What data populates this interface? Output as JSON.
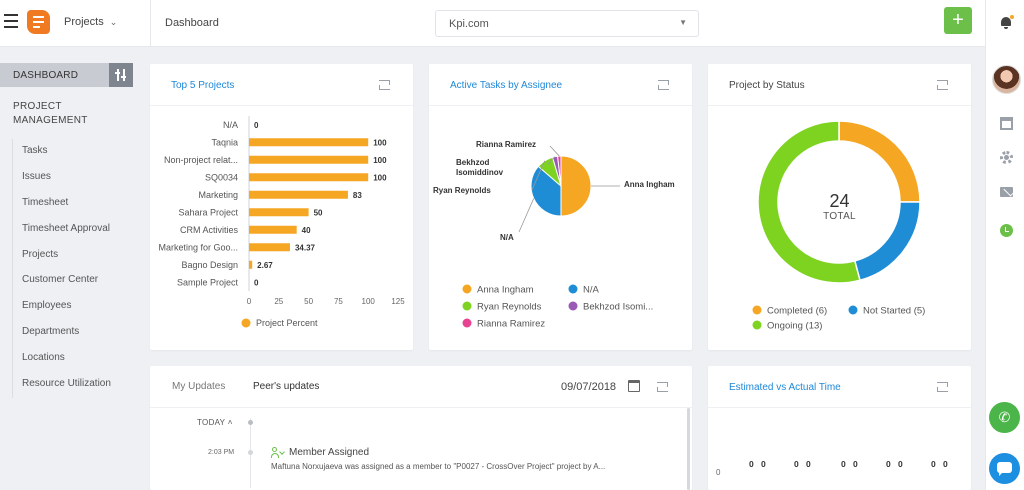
{
  "header": {
    "project_selector": "Projects",
    "breadcrumb": "Dashboard",
    "site_select": "Kpi.com",
    "add_label": "+"
  },
  "sidebar": {
    "dashboard_label": "DASHBOARD",
    "section_title": "PROJECT MANAGEMENT",
    "items": [
      {
        "label": "Tasks"
      },
      {
        "label": "Issues"
      },
      {
        "label": "Timesheet"
      },
      {
        "label": "Timesheet Approval"
      },
      {
        "label": "Projects"
      },
      {
        "label": "Customer Center"
      },
      {
        "label": "Employees"
      },
      {
        "label": "Departments"
      },
      {
        "label": "Locations"
      },
      {
        "label": "Resource Utilization"
      }
    ]
  },
  "cards": {
    "top5": {
      "title": "Top 5 Projects"
    },
    "tasks": {
      "title": "Active Tasks by Assignee"
    },
    "status": {
      "title": "Project by Status",
      "total_value": "24",
      "total_label": "TOTAL"
    },
    "updates": {
      "tab_mine": "My Updates",
      "tab_peers": "Peer's updates",
      "date": "09/07/2018"
    },
    "estimated": {
      "title": "Estimated vs Actual Time"
    }
  },
  "timeline": {
    "group_label": "TODAY",
    "event": {
      "time": "2:03 PM",
      "title": "Member Assigned",
      "description": "Maftuna Norxujaeva was assigned as a member to \"P0027 - CrossOver Project\" project by A..."
    }
  },
  "colors": {
    "accent": "#1e88d8",
    "orange": "#f5a623",
    "blue": "#1f8dd6",
    "green": "#7ed321",
    "purple": "#9b59b6",
    "pink": "#e84393",
    "add_green": "#6cc04a"
  },
  "chart_data": [
    {
      "type": "bar",
      "orientation": "horizontal",
      "categories": [
        "N/A",
        "Taqnia",
        "Non-project relat...",
        "SQ0034",
        "Marketing",
        "Sahara Project",
        "CRM Activities",
        "Marketing for Goo...",
        "Bagno Design",
        "Sample Project"
      ],
      "series": [
        {
          "name": "Project Percent",
          "values": [
            0,
            100,
            100,
            100,
            83,
            50,
            40,
            34.37,
            2.67,
            0
          ],
          "color": "#f5a623"
        }
      ],
      "data_labels": [
        "0",
        "100",
        "100",
        "100",
        "83",
        "50",
        "40",
        "34.37",
        "2.67",
        "0"
      ],
      "xlim": [
        0,
        125
      ],
      "xticks": [
        "0",
        "25",
        "50",
        "75",
        "100",
        "125"
      ],
      "legend": "bottom",
      "grid": false
    },
    {
      "type": "pie",
      "slices": [
        {
          "label": "Anna Ingham",
          "value": 11,
          "color": "#f5a623"
        },
        {
          "label": "N/A",
          "value": 8,
          "color": "#1f8dd6"
        },
        {
          "label": "Ryan Reynolds",
          "value": 2,
          "color": "#7ed321"
        },
        {
          "label": "Bekhzod Isomiddinov",
          "value": 0.6,
          "color": "#9b59b6"
        },
        {
          "label": "Rianna Ramirez",
          "value": 0.4,
          "color": "#e84393"
        }
      ],
      "callout_labels": [
        "Anna Ingham",
        "N/A",
        "Ryan Reynolds",
        "Bekhzod",
        "Isomiddinov",
        "Rianna Ramirez"
      ],
      "legend_labels": [
        "Anna Ingham",
        "N/A",
        "Ryan Reynolds",
        "Bekhzod Isomi...",
        "Rianna Ramirez"
      ],
      "legend": "bottom"
    },
    {
      "type": "pie",
      "donut": true,
      "slices": [
        {
          "label": "Completed (6)",
          "value": 6,
          "color": "#f5a623"
        },
        {
          "label": "Not Started (5)",
          "value": 5,
          "color": "#1f8dd6"
        },
        {
          "label": "Ongoing (13)",
          "value": 13,
          "color": "#7ed321"
        }
      ],
      "center_value": 24,
      "center_label": "TOTAL",
      "legend": "bottom"
    },
    {
      "type": "bar",
      "y_ticks": [
        "0"
      ],
      "data_labels": [
        "0",
        "0",
        "0",
        "0",
        "0",
        "0",
        "0",
        "0",
        "0",
        "0"
      ],
      "values": [
        0,
        0,
        0,
        0,
        0,
        0,
        0,
        0,
        0,
        0
      ]
    }
  ]
}
